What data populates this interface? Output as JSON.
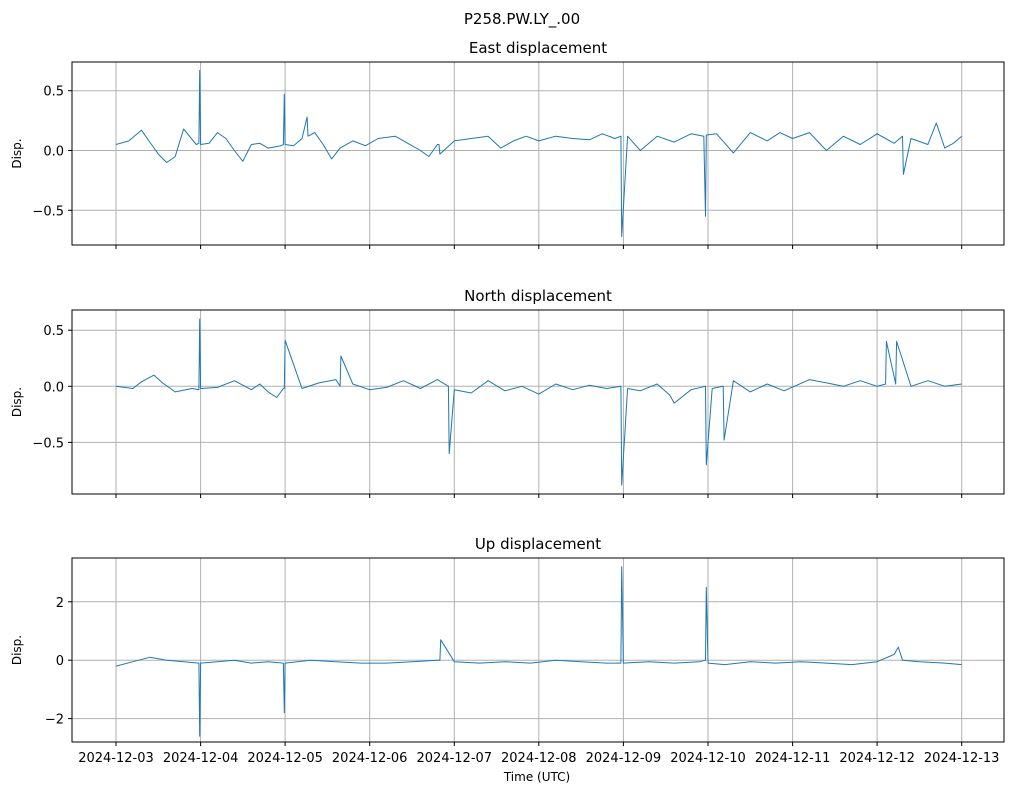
{
  "chart_data": {
    "type": "line",
    "suptitle": "P258.PW.LY_.00",
    "xlabel": "Time (UTC)",
    "x_ticks": [
      "2024-12-03",
      "2024-12-04",
      "2024-12-05",
      "2024-12-06",
      "2024-12-07",
      "2024-12-08",
      "2024-12-09",
      "2024-12-10",
      "2024-12-11",
      "2024-12-12",
      "2024-12-13"
    ],
    "x_unit": "days since 2024-12-03",
    "xlim": [
      -0.52,
      10.5
    ],
    "panels": [
      {
        "name": "east",
        "title": "East displacement",
        "ylabel": "Disp.",
        "ylim": [
          -0.79,
          0.74
        ],
        "yticks": [
          0.5,
          0.0,
          -0.5
        ],
        "ytick_labels": [
          "0.5",
          "0.0",
          "−0.5"
        ],
        "series": {
          "name": "East",
          "x": [
            0,
            0.15,
            0.3,
            0.42,
            0.5,
            0.6,
            0.7,
            0.8,
            0.95,
            0.98,
            0.99,
            1.0,
            1.1,
            1.2,
            1.3,
            1.4,
            1.5,
            1.6,
            1.7,
            1.8,
            1.95,
            1.98,
            1.99,
            2.0,
            2.1,
            2.2,
            2.26,
            2.27,
            2.35,
            2.45,
            2.55,
            2.65,
            2.8,
            2.95,
            3.1,
            3.3,
            3.45,
            3.6,
            3.7,
            3.8,
            3.82,
            3.83,
            4.0,
            4.2,
            4.4,
            4.55,
            4.7,
            4.85,
            5.0,
            5.2,
            5.4,
            5.6,
            5.75,
            5.9,
            5.97,
            5.98,
            6.05,
            6.2,
            6.4,
            6.6,
            6.8,
            6.95,
            6.97,
            6.98,
            7.1,
            7.3,
            7.5,
            7.7,
            7.85,
            8.0,
            8.2,
            8.4,
            8.6,
            8.8,
            9.0,
            9.2,
            9.3,
            9.31,
            9.4,
            9.6,
            9.7,
            9.8,
            9.9,
            10.0
          ],
          "values": [
            0.05,
            0.08,
            0.17,
            0.05,
            -0.03,
            -0.1,
            -0.05,
            0.18,
            0.05,
            0.06,
            0.67,
            0.05,
            0.06,
            0.15,
            0.1,
            0.0,
            -0.09,
            0.05,
            0.06,
            0.02,
            0.04,
            0.05,
            0.47,
            0.05,
            0.04,
            0.1,
            0.28,
            0.12,
            0.15,
            0.05,
            -0.07,
            0.02,
            0.08,
            0.04,
            0.1,
            0.12,
            0.06,
            0.0,
            -0.05,
            0.05,
            0.05,
            -0.03,
            0.08,
            0.1,
            0.12,
            0.02,
            0.08,
            0.12,
            0.08,
            0.12,
            0.1,
            0.09,
            0.14,
            0.1,
            0.12,
            -0.72,
            0.12,
            0.0,
            0.12,
            0.07,
            0.14,
            0.12,
            -0.55,
            0.13,
            0.14,
            -0.02,
            0.15,
            0.08,
            0.15,
            0.1,
            0.15,
            0.0,
            0.12,
            0.05,
            0.14,
            0.06,
            0.12,
            -0.2,
            0.1,
            0.05,
            0.23,
            0.02,
            0.06,
            0.12
          ]
        }
      },
      {
        "name": "north",
        "title": "North displacement",
        "ylabel": "Disp.",
        "ylim": [
          -0.96,
          0.68
        ],
        "yticks": [
          0.5,
          0.0,
          -0.5
        ],
        "ytick_labels": [
          "0.5",
          "0.0",
          "−0.5"
        ],
        "series": {
          "name": "North",
          "x": [
            0,
            0.2,
            0.3,
            0.45,
            0.55,
            0.7,
            0.9,
            0.98,
            0.99,
            1.0,
            1.2,
            1.4,
            1.6,
            1.7,
            1.8,
            1.9,
            1.98,
            1.99,
            2.0,
            2.2,
            2.4,
            2.6,
            2.65,
            2.66,
            2.8,
            3.0,
            3.2,
            3.4,
            3.6,
            3.8,
            3.93,
            3.94,
            4.0,
            4.2,
            4.4,
            4.6,
            4.8,
            5.0,
            5.2,
            5.4,
            5.6,
            5.8,
            5.97,
            5.98,
            6.05,
            6.2,
            6.4,
            6.55,
            6.6,
            6.8,
            6.97,
            6.98,
            7.05,
            7.18,
            7.19,
            7.3,
            7.5,
            7.7,
            7.9,
            8.2,
            8.4,
            8.6,
            8.8,
            9.0,
            9.1,
            9.11,
            9.22,
            9.23,
            9.4,
            9.6,
            9.8,
            10.0
          ],
          "values": [
            0.0,
            -0.02,
            0.04,
            0.1,
            0.03,
            -0.05,
            -0.02,
            -0.03,
            0.6,
            -0.02,
            -0.01,
            0.05,
            -0.03,
            0.02,
            -0.05,
            -0.1,
            -0.02,
            -0.02,
            0.41,
            -0.02,
            0.03,
            0.06,
            0.0,
            0.27,
            0.02,
            -0.03,
            -0.01,
            0.05,
            -0.02,
            0.06,
            0.0,
            -0.6,
            -0.03,
            -0.06,
            0.05,
            -0.04,
            0.0,
            -0.07,
            0.02,
            -0.03,
            0.01,
            -0.02,
            0.0,
            -0.88,
            -0.02,
            -0.04,
            0.02,
            -0.08,
            -0.15,
            -0.03,
            0.0,
            -0.7,
            -0.02,
            0.0,
            -0.48,
            0.05,
            -0.05,
            0.02,
            -0.04,
            0.06,
            0.03,
            0.0,
            0.05,
            0.0,
            0.02,
            0.4,
            0.02,
            0.4,
            0.0,
            0.05,
            0.0,
            0.02
          ]
        }
      },
      {
        "name": "up",
        "title": "Up displacement",
        "ylabel": "Disp.",
        "ylim": [
          -2.8,
          3.5
        ],
        "yticks": [
          2,
          0,
          -2
        ],
        "ytick_labels": [
          "2",
          "0",
          "−2"
        ],
        "series": {
          "name": "Up",
          "x": [
            0,
            0.2,
            0.4,
            0.6,
            0.8,
            0.98,
            0.99,
            1.0,
            1.2,
            1.4,
            1.6,
            1.8,
            1.98,
            1.99,
            2.0,
            2.3,
            2.6,
            2.9,
            3.2,
            3.5,
            3.8,
            3.83,
            3.84,
            4.0,
            4.3,
            4.6,
            4.9,
            5.2,
            5.5,
            5.8,
            5.97,
            5.98,
            6.0,
            6.3,
            6.6,
            6.9,
            6.97,
            6.98,
            7.0,
            7.2,
            7.5,
            7.8,
            8.1,
            8.4,
            8.7,
            9.0,
            9.2,
            9.25,
            9.3,
            9.5,
            9.8,
            10.0
          ],
          "values": [
            -0.2,
            -0.05,
            0.1,
            0.0,
            -0.05,
            -0.1,
            -2.6,
            -0.1,
            -0.05,
            0.0,
            -0.1,
            -0.05,
            -0.1,
            -1.8,
            -0.1,
            0.0,
            -0.05,
            -0.1,
            -0.1,
            -0.05,
            0.0,
            0.0,
            0.7,
            -0.05,
            -0.1,
            -0.05,
            -0.1,
            0.0,
            -0.05,
            -0.1,
            -0.1,
            3.2,
            -0.1,
            -0.05,
            -0.1,
            -0.05,
            0.0,
            2.5,
            -0.1,
            -0.15,
            -0.05,
            -0.1,
            -0.05,
            -0.1,
            -0.15,
            -0.05,
            0.2,
            0.45,
            0.0,
            -0.05,
            -0.1,
            -0.15
          ]
        }
      }
    ]
  }
}
